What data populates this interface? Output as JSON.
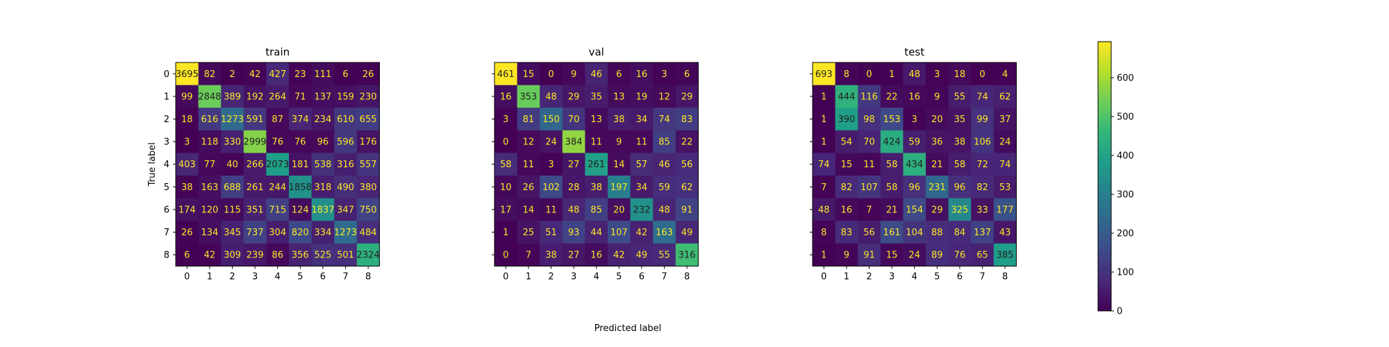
{
  "chart_data": [
    {
      "type": "heatmap",
      "title": "train",
      "ylabel": "True label",
      "x_tick_labels": [
        "0",
        "1",
        "2",
        "3",
        "4",
        "5",
        "6",
        "7",
        "8"
      ],
      "y_tick_labels": [
        "0",
        "1",
        "2",
        "3",
        "4",
        "5",
        "6",
        "7",
        "8"
      ],
      "matrix": [
        [
          3695,
          82,
          2,
          42,
          427,
          23,
          111,
          6,
          26
        ],
        [
          99,
          2848,
          389,
          192,
          264,
          71,
          137,
          159,
          230
        ],
        [
          18,
          616,
          1273,
          591,
          87,
          374,
          234,
          610,
          655
        ],
        [
          3,
          118,
          330,
          2999,
          76,
          76,
          96,
          596,
          176
        ],
        [
          403,
          77,
          40,
          266,
          2073,
          181,
          538,
          316,
          557
        ],
        [
          38,
          163,
          688,
          261,
          244,
          1858,
          318,
          490,
          380
        ],
        [
          174,
          120,
          115,
          351,
          715,
          124,
          1837,
          347,
          750
        ],
        [
          26,
          134,
          345,
          737,
          304,
          820,
          334,
          1273,
          484
        ],
        [
          6,
          42,
          309,
          239,
          86,
          356,
          525,
          501,
          2324
        ]
      ]
    },
    {
      "type": "heatmap",
      "title": "val",
      "x_tick_labels": [
        "0",
        "1",
        "2",
        "3",
        "4",
        "5",
        "6",
        "7",
        "8"
      ],
      "y_tick_labels": [
        "0",
        "1",
        "2",
        "3",
        "4",
        "5",
        "6",
        "7",
        "8"
      ],
      "matrix": [
        [
          461,
          15,
          0,
          9,
          46,
          6,
          16,
          3,
          6
        ],
        [
          16,
          353,
          48,
          29,
          35,
          13,
          19,
          12,
          29
        ],
        [
          3,
          81,
          150,
          70,
          13,
          38,
          34,
          74,
          83
        ],
        [
          0,
          12,
          24,
          384,
          11,
          9,
          11,
          85,
          22
        ],
        [
          58,
          11,
          3,
          27,
          261,
          14,
          57,
          46,
          56
        ],
        [
          10,
          26,
          102,
          28,
          38,
          197,
          34,
          59,
          62
        ],
        [
          17,
          14,
          11,
          48,
          85,
          20,
          232,
          48,
          91
        ],
        [
          1,
          25,
          51,
          93,
          44,
          107,
          42,
          163,
          49
        ],
        [
          0,
          7,
          38,
          27,
          16,
          42,
          49,
          55,
          316
        ]
      ]
    },
    {
      "type": "heatmap",
      "title": "test",
      "x_tick_labels": [
        "0",
        "1",
        "2",
        "3",
        "4",
        "5",
        "6",
        "7",
        "8"
      ],
      "y_tick_labels": [
        "0",
        "1",
        "2",
        "3",
        "4",
        "5",
        "6",
        "7",
        "8"
      ],
      "matrix": [
        [
          693,
          8,
          0,
          1,
          48,
          3,
          18,
          0,
          4
        ],
        [
          1,
          444,
          116,
          22,
          16,
          9,
          55,
          74,
          62
        ],
        [
          1,
          390,
          98,
          153,
          3,
          20,
          35,
          99,
          37
        ],
        [
          1,
          54,
          70,
          424,
          59,
          36,
          38,
          106,
          24
        ],
        [
          74,
          15,
          11,
          58,
          434,
          21,
          58,
          72,
          74
        ],
        [
          7,
          82,
          107,
          58,
          96,
          231,
          96,
          82,
          53
        ],
        [
          48,
          16,
          7,
          21,
          154,
          29,
          325,
          33,
          177
        ],
        [
          8,
          83,
          56,
          161,
          104,
          88,
          84,
          137,
          43
        ],
        [
          1,
          9,
          91,
          15,
          24,
          89,
          76,
          65,
          385
        ]
      ]
    }
  ],
  "shared": {
    "xlabel": "Predicted label",
    "colorbar": {
      "colormap": "viridis",
      "range": [
        0,
        693
      ],
      "tick_labels": [
        "0",
        "100",
        "200",
        "300",
        "400",
        "500",
        "600"
      ],
      "tick_values": [
        0,
        100,
        200,
        300,
        400,
        500,
        600
      ]
    }
  }
}
